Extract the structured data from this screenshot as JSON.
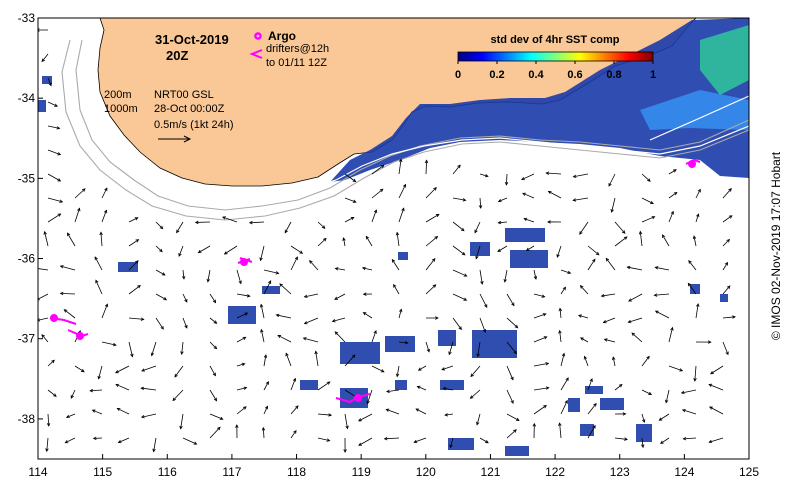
{
  "map": {
    "date": "31-Oct-2019",
    "time": "20Z",
    "contours": {
      "c1": "200m",
      "c2": "1000m"
    },
    "altimetry_label": "NRT00 GSL",
    "altimetry_date": "28-Oct 00:00Z",
    "vector_scale": "0.5m/s (1kt 24h)",
    "legend": {
      "argo": "Argo",
      "drifters_line1": "drifters@12h",
      "drifters_line2": "to 01/11 12Z"
    },
    "colorbar": {
      "title": "std dev of 4hr SST comp",
      "ticks": [
        "0",
        "0.2",
        "0.4",
        "0.6",
        "0.8",
        "1"
      ],
      "range": [
        0,
        1
      ],
      "colors": [
        "#00007f",
        "#0000ff",
        "#007fff",
        "#00ffff",
        "#7fff7f",
        "#ffff00",
        "#ff7f00",
        "#ff0000",
        "#7f0000"
      ]
    },
    "x_ticks": [
      "114",
      "115",
      "116",
      "117",
      "118",
      "119",
      "120",
      "121",
      "122",
      "123",
      "124",
      "125"
    ],
    "y_ticks": [
      "-33",
      "-34",
      "-35",
      "-36",
      "-37",
      "-38"
    ],
    "lon_range": [
      114,
      125
    ],
    "lat_range": [
      -38.5,
      -33
    ],
    "land_color": "#f9c896",
    "argo_color": "#ff00ff",
    "credit": "© IMOS 02-Nov-2019 17:07 Hobart"
  }
}
